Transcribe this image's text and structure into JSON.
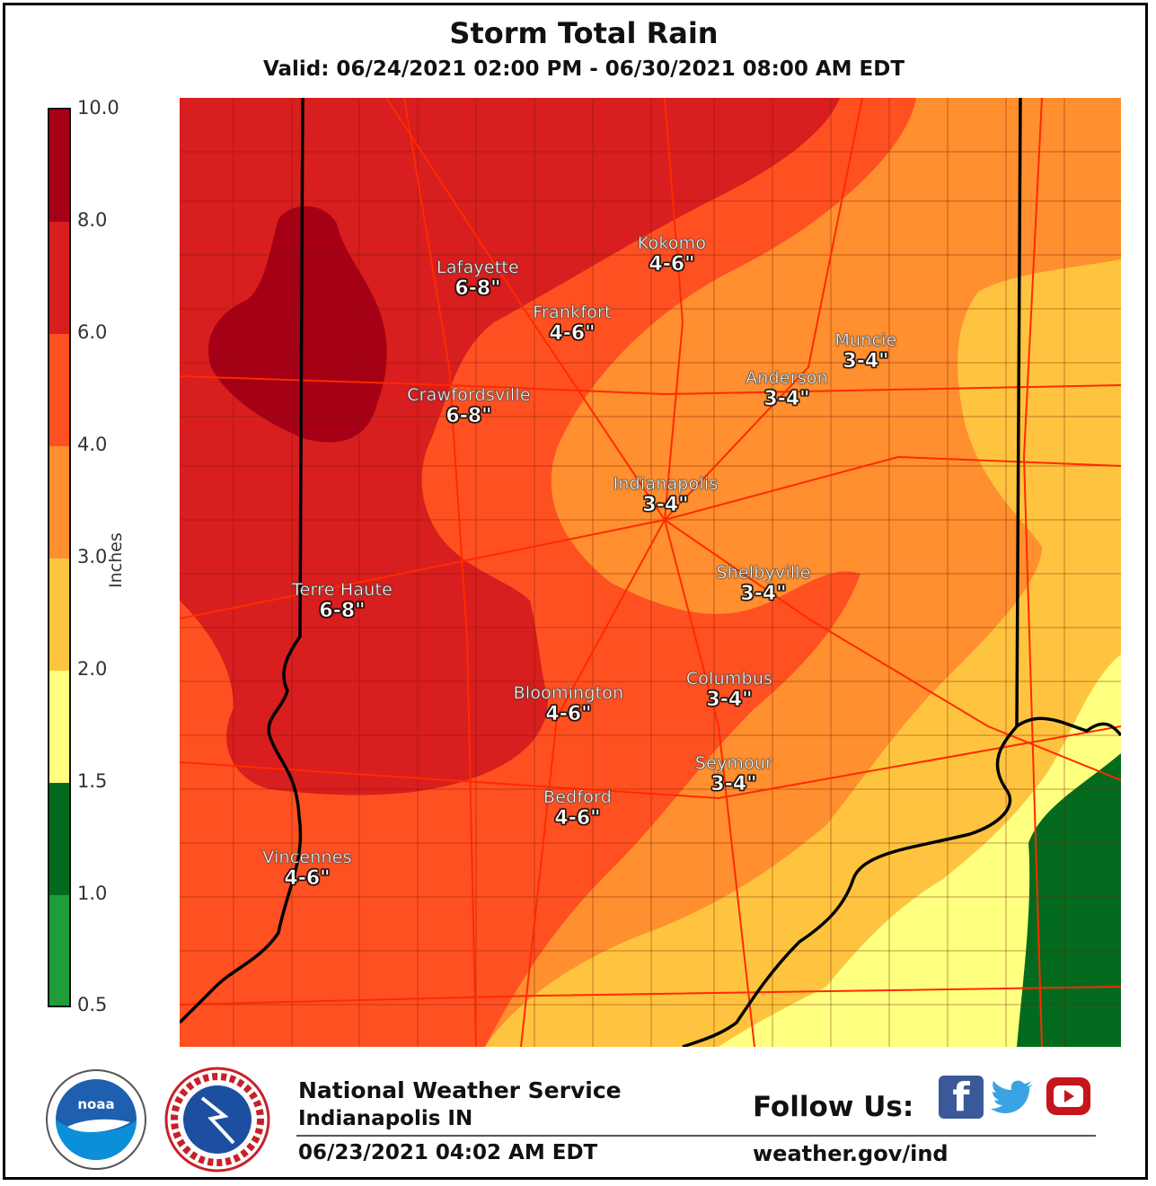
{
  "header": {
    "title": "Storm Total Rain",
    "valid": "Valid: 06/24/2021 02:00 PM - 06/30/2021 08:00 AM EDT"
  },
  "legend": {
    "label": "Inches",
    "ticks": [
      "10.0",
      "8.0",
      "6.0",
      "4.0",
      "3.0",
      "2.0",
      "1.5",
      "1.0",
      "0.5"
    ],
    "colors": [
      "#a50016",
      "#d81e1e",
      "#ff5022",
      "#ff8f2f",
      "#ffc43f",
      "#ffff80",
      "#036b1e",
      "#1f9d3a"
    ]
  },
  "colors": {
    "rain_8_10": "#a50016",
    "rain_6_8": "#d81e1e",
    "rain_4_6": "#ff5022",
    "rain_3_4": "#ff8f2f",
    "rain_2_3": "#ffc43f",
    "rain_1_5_2": "#ffff80",
    "rain_1_1_5": "#036b1e",
    "roads": "#ff2a00",
    "borders": "#000000"
  },
  "cities": [
    {
      "name": "Kokomo",
      "range": "4-6\""
    },
    {
      "name": "Lafayette",
      "range": "6-8\""
    },
    {
      "name": "Frankfort",
      "range": "4-6\""
    },
    {
      "name": "Muncie",
      "range": "3-4\""
    },
    {
      "name": "Anderson",
      "range": "3-4\""
    },
    {
      "name": "Crawfordsville",
      "range": "6-8\""
    },
    {
      "name": "Indianapolis",
      "range": "3-4\""
    },
    {
      "name": "Shelbyville",
      "range": "3-4\""
    },
    {
      "name": "Terre Haute",
      "range": "6-8\""
    },
    {
      "name": "Columbus",
      "range": "3-4\""
    },
    {
      "name": "Bloomington",
      "range": "4-6\""
    },
    {
      "name": "Seymour",
      "range": "3-4\""
    },
    {
      "name": "Bedford",
      "range": "4-6\""
    },
    {
      "name": "Vincennes",
      "range": "4-6\""
    }
  ],
  "footer": {
    "org": "National Weather Service",
    "office": "Indianapolis IN",
    "issued": "06/23/2021 04:02 AM EDT",
    "follow": "Follow Us:",
    "url": "weather.gov/ind",
    "noaa_logo": "noaa-logo",
    "nws_logo": "nws-logo",
    "social": [
      "facebook-icon",
      "twitter-icon",
      "youtube-icon"
    ]
  }
}
